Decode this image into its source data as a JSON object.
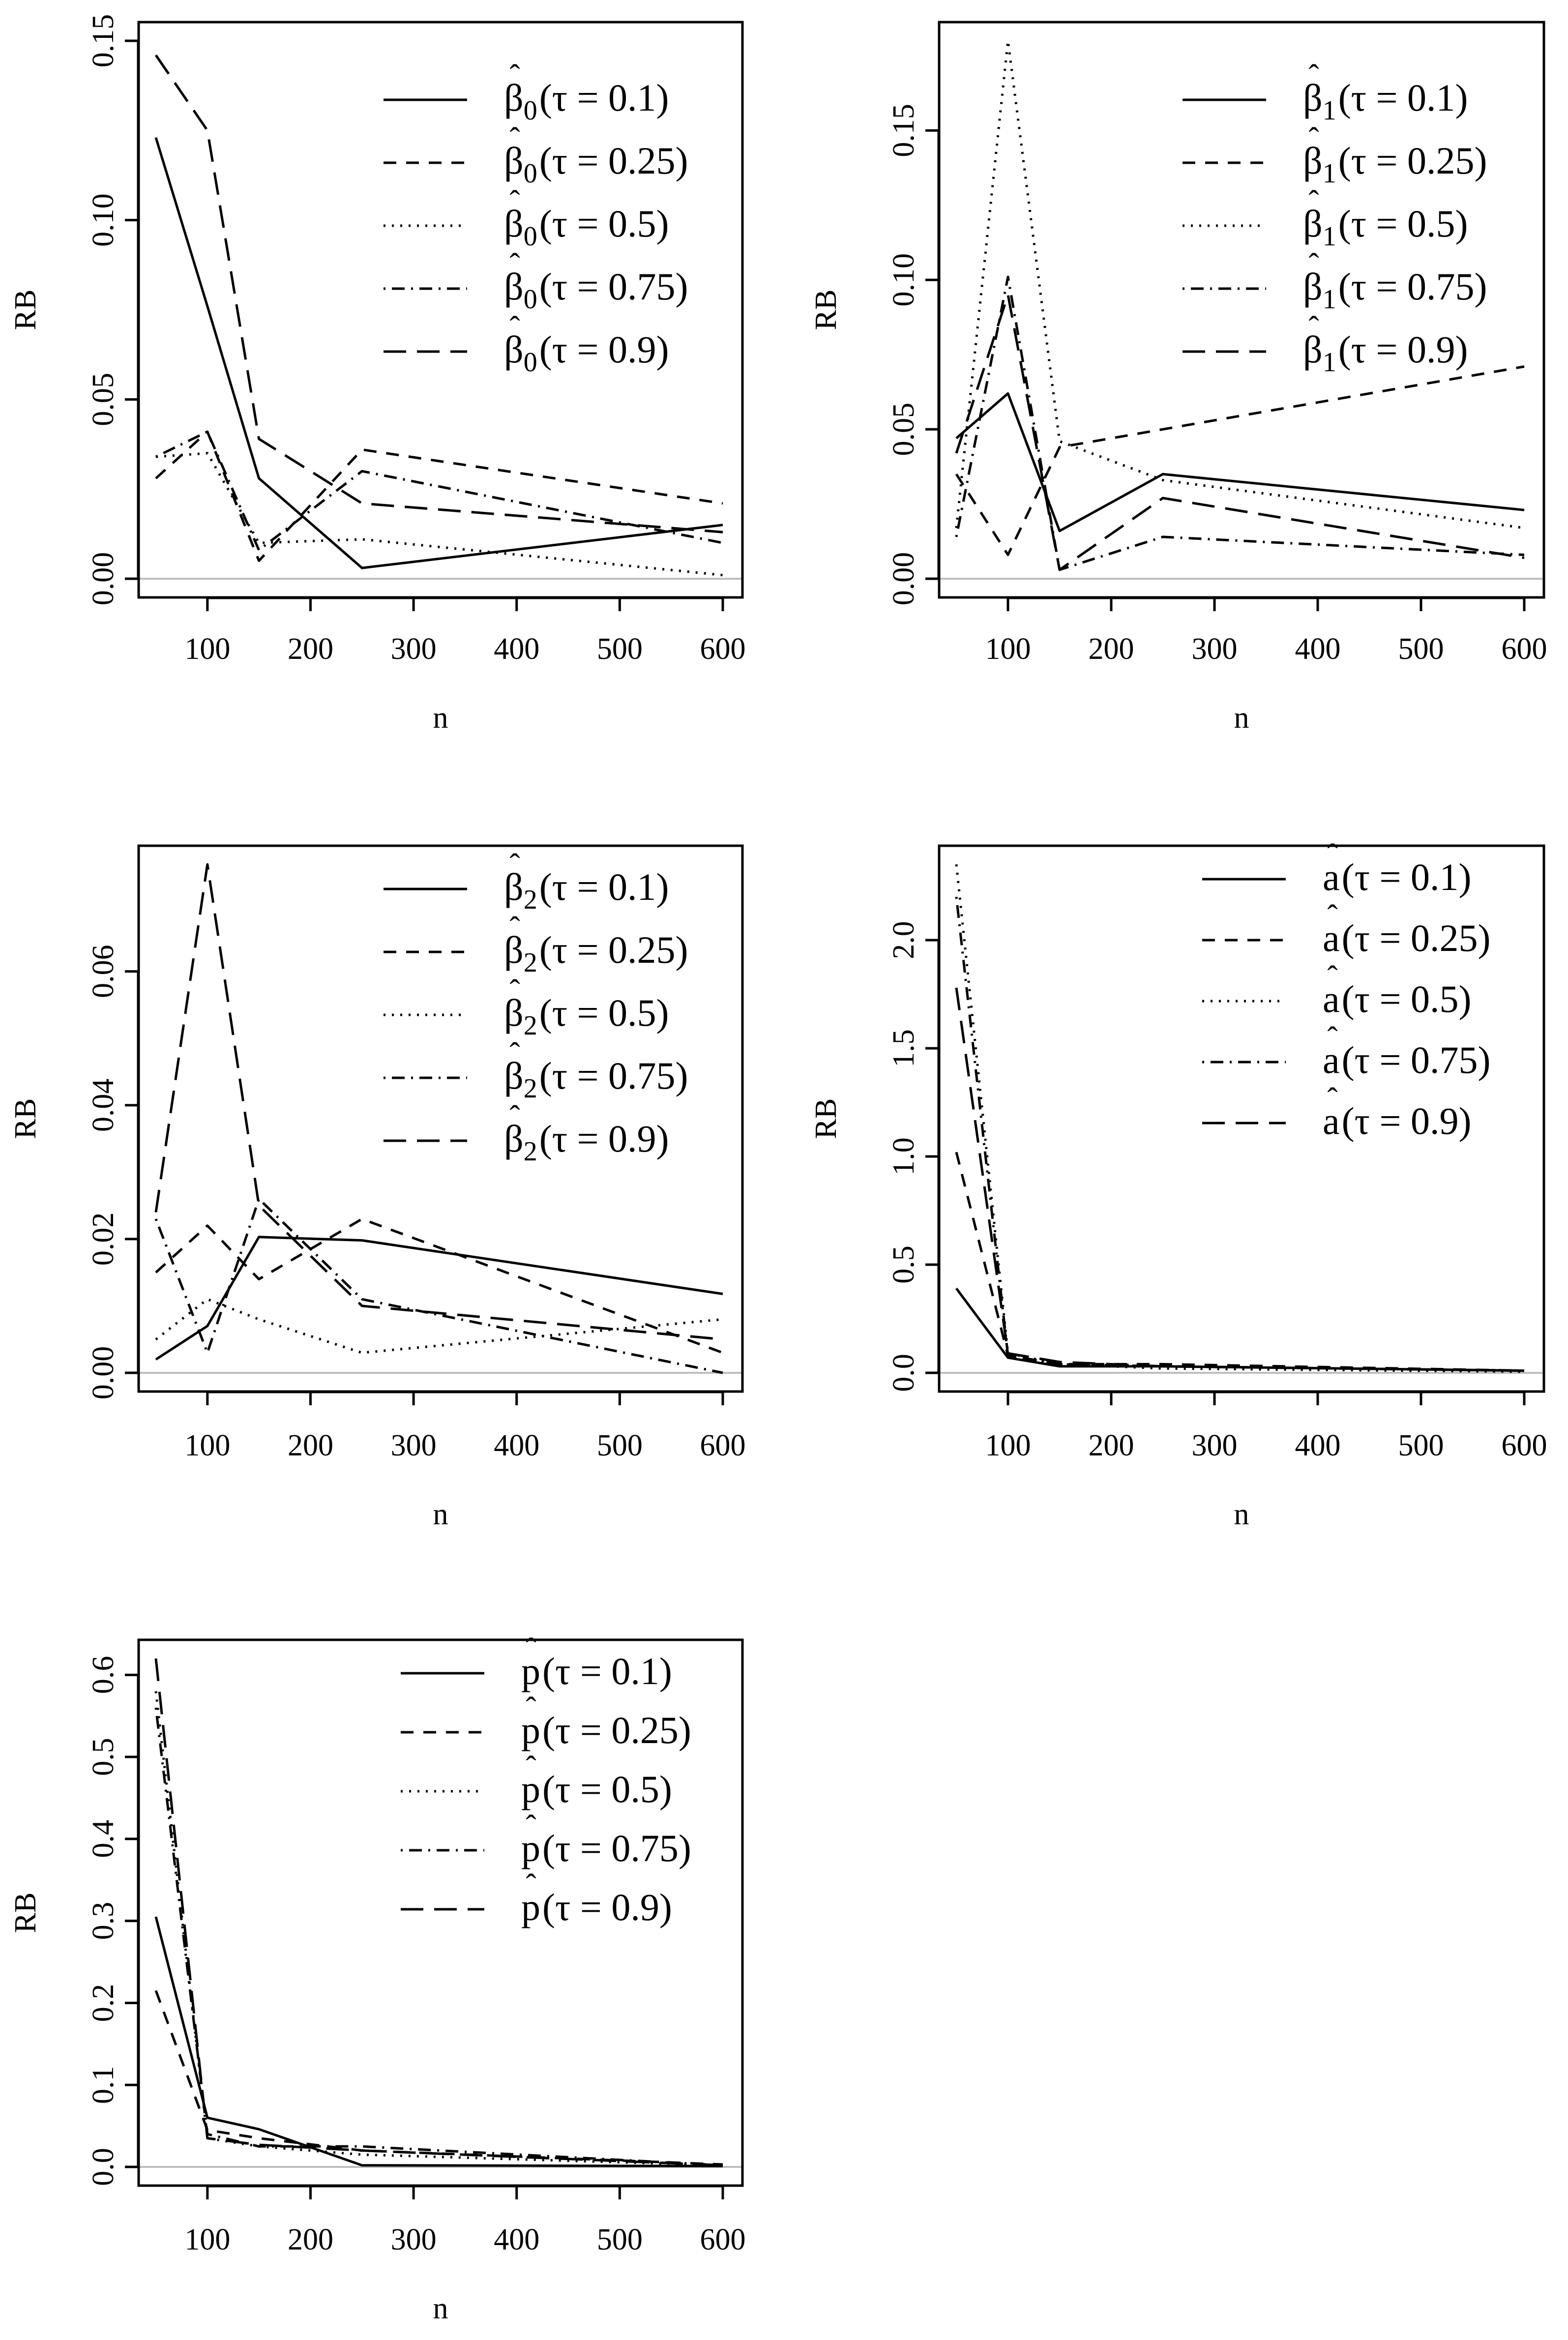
{
  "figure": {
    "background": "#ffffff",
    "line_color": "#000000",
    "zero_line_color": "#bebebe"
  },
  "chart_data": [
    {
      "type": "line",
      "title": "",
      "xlabel": "n",
      "ylabel": "RB",
      "xlim": [
        50,
        600
      ],
      "ylim": [
        0,
        0.15
      ],
      "xticks": [
        "100",
        "200",
        "300",
        "400",
        "500",
        "600"
      ],
      "yticks": [
        "0.00",
        "0.05",
        "0.10",
        "0.15"
      ],
      "legend_position": "top-right",
      "x": [
        50,
        100,
        150,
        250,
        600
      ],
      "series": [
        {
          "name": "β̂0(τ = 0.1)",
          "estimator": "β",
          "sub": "0",
          "tau": "0.1",
          "style": "solid",
          "values": [
            0.123,
            0.076,
            0.028,
            0.003,
            0.015
          ]
        },
        {
          "name": "β̂0(τ = 0.25)",
          "estimator": "β",
          "sub": "0",
          "tau": "0.25",
          "style": "dashed",
          "values": [
            0.028,
            0.041,
            0.005,
            0.036,
            0.021
          ]
        },
        {
          "name": "β̂0(τ = 0.5)",
          "estimator": "β",
          "sub": "0",
          "tau": "0.5",
          "style": "dotted",
          "values": [
            0.034,
            0.035,
            0.01,
            0.011,
            0.001
          ]
        },
        {
          "name": "β̂0(τ = 0.75)",
          "estimator": "β",
          "sub": "0",
          "tau": "0.75",
          "style": "dotdash",
          "values": [
            0.034,
            0.041,
            0.008,
            0.03,
            0.01
          ]
        },
        {
          "name": "β̂0(τ = 0.9)",
          "estimator": "β",
          "sub": "0",
          "tau": "0.9",
          "style": "longdash",
          "values": [
            0.146,
            0.125,
            0.039,
            0.021,
            0.013
          ]
        }
      ]
    },
    {
      "type": "line",
      "title": "",
      "xlabel": "n",
      "ylabel": "RB",
      "xlim": [
        50,
        600
      ],
      "ylim": [
        0,
        0.18
      ],
      "xticks": [
        "100",
        "200",
        "300",
        "400",
        "500",
        "600"
      ],
      "yticks": [
        "0.00",
        "0.05",
        "0.10",
        "0.15"
      ],
      "legend_position": "top-right",
      "x": [
        50,
        100,
        150,
        250,
        600
      ],
      "series": [
        {
          "name": "β̂1(τ = 0.1)",
          "estimator": "β",
          "sub": "1",
          "tau": "0.1",
          "style": "solid",
          "values": [
            0.047,
            0.062,
            0.016,
            0.035,
            0.023
          ]
        },
        {
          "name": "β̂1(τ = 0.25)",
          "estimator": "β",
          "sub": "1",
          "tau": "0.25",
          "style": "dashed",
          "values": [
            0.035,
            0.008,
            0.044,
            0.05,
            0.071
          ]
        },
        {
          "name": "β̂1(τ = 0.5)",
          "estimator": "β",
          "sub": "1",
          "tau": "0.5",
          "style": "dotted",
          "values": [
            0.017,
            0.18,
            0.046,
            0.033,
            0.017
          ]
        },
        {
          "name": "β̂1(τ = 0.75)",
          "estimator": "β",
          "sub": "1",
          "tau": "0.75",
          "style": "dotdash",
          "values": [
            0.014,
            0.101,
            0.003,
            0.014,
            0.008
          ]
        },
        {
          "name": "β̂1(τ = 0.9)",
          "estimator": "β",
          "sub": "1",
          "tau": "0.9",
          "style": "longdash",
          "values": [
            0.042,
            0.095,
            0.003,
            0.027,
            0.007
          ]
        }
      ]
    },
    {
      "type": "line",
      "title": "",
      "xlabel": "n",
      "ylabel": "RB",
      "xlim": [
        50,
        600
      ],
      "ylim": [
        0,
        0.076
      ],
      "xticks": [
        "100",
        "200",
        "300",
        "400",
        "500",
        "600"
      ],
      "yticks": [
        "0.00",
        "0.02",
        "0.04",
        "0.06"
      ],
      "legend_position": "top-right",
      "x": [
        50,
        100,
        150,
        250,
        600
      ],
      "series": [
        {
          "name": "β̂2(τ = 0.1)",
          "estimator": "β",
          "sub": "2",
          "tau": "0.1",
          "style": "solid",
          "values": [
            0.002,
            0.007,
            0.0203,
            0.0198,
            0.0118
          ]
        },
        {
          "name": "β̂2(τ = 0.25)",
          "estimator": "β",
          "sub": "2",
          "tau": "0.25",
          "style": "dashed",
          "values": [
            0.015,
            0.022,
            0.014,
            0.023,
            0.003
          ]
        },
        {
          "name": "β̂2(τ = 0.5)",
          "estimator": "β",
          "sub": "2",
          "tau": "0.5",
          "style": "dotted",
          "values": [
            0.005,
            0.011,
            0.008,
            0.003,
            0.008
          ]
        },
        {
          "name": "β̂2(τ = 0.75)",
          "estimator": "β",
          "sub": "2",
          "tau": "0.75",
          "style": "dotdash",
          "values": [
            0.023,
            0.003,
            0.026,
            0.011,
            0.0
          ]
        },
        {
          "name": "β̂2(τ = 0.9)",
          "estimator": "β",
          "sub": "2",
          "tau": "0.9",
          "style": "longdash",
          "values": [
            0.024,
            0.076,
            0.025,
            0.01,
            0.005
          ]
        }
      ]
    },
    {
      "type": "line",
      "title": "",
      "xlabel": "n",
      "ylabel": "RB",
      "xlim": [
        50,
        600
      ],
      "ylim": [
        0,
        2.35
      ],
      "xticks": [
        "100",
        "200",
        "300",
        "400",
        "500",
        "600"
      ],
      "yticks": [
        "0.0",
        "0.5",
        "1.0",
        "1.5",
        "2.0"
      ],
      "legend_position": "top-right",
      "x": [
        50,
        100,
        150,
        250,
        600
      ],
      "series": [
        {
          "name": "â(τ = 0.1)",
          "estimator": "a",
          "sub": "",
          "tau": "0.1",
          "style": "solid",
          "values": [
            0.39,
            0.07,
            0.03,
            0.03,
            0.01
          ]
        },
        {
          "name": "â(τ = 0.25)",
          "estimator": "a",
          "sub": "",
          "tau": "0.25",
          "style": "dashed",
          "values": [
            1.02,
            0.08,
            0.04,
            0.04,
            0.01
          ]
        },
        {
          "name": "â(τ = 0.5)",
          "estimator": "a",
          "sub": "",
          "tau": "0.5",
          "style": "dotted",
          "values": [
            2.35,
            0.09,
            0.04,
            0.02,
            0.005
          ]
        },
        {
          "name": "â(τ = 0.75)",
          "estimator": "a",
          "sub": "",
          "tau": "0.75",
          "style": "dotdash",
          "values": [
            2.2,
            0.08,
            0.04,
            0.03,
            0.01
          ]
        },
        {
          "name": "â(τ = 0.9)",
          "estimator": "a",
          "sub": "",
          "tau": "0.9",
          "style": "longdash",
          "values": [
            1.78,
            0.09,
            0.05,
            0.03,
            0.01
          ]
        }
      ]
    },
    {
      "type": "line",
      "title": "",
      "xlabel": "n",
      "ylabel": "RB",
      "xlim": [
        50,
        600
      ],
      "ylim": [
        0,
        0.62
      ],
      "xticks": [
        "100",
        "200",
        "300",
        "400",
        "500",
        "600"
      ],
      "yticks": [
        "0.0",
        "0.1",
        "0.2",
        "0.3",
        "0.4",
        "0.5",
        "0.6"
      ],
      "legend_position": "top-right",
      "x": [
        50,
        100,
        150,
        250,
        600
      ],
      "series": [
        {
          "name": "p̂(τ = 0.1)",
          "estimator": "p",
          "sub": "",
          "tau": "0.1",
          "style": "solid",
          "values": [
            0.305,
            0.06,
            0.046,
            0.002,
            0.001
          ]
        },
        {
          "name": "p̂(τ = 0.25)",
          "estimator": "p",
          "sub": "",
          "tau": "0.25",
          "style": "dashed",
          "values": [
            0.215,
            0.045,
            0.035,
            0.02,
            0.003
          ]
        },
        {
          "name": "p̂(τ = 0.5)",
          "estimator": "p",
          "sub": "",
          "tau": "0.5",
          "style": "dotted",
          "values": [
            0.58,
            0.035,
            0.025,
            0.015,
            0.002
          ]
        },
        {
          "name": "p̂(τ = 0.75)",
          "estimator": "p",
          "sub": "",
          "tau": "0.75",
          "style": "dotdash",
          "values": [
            0.56,
            0.04,
            0.025,
            0.025,
            0.002
          ]
        },
        {
          "name": "p̂(τ = 0.9)",
          "estimator": "p",
          "sub": "",
          "tau": "0.9",
          "style": "longdash",
          "values": [
            0.62,
            0.035,
            0.027,
            0.02,
            0.002
          ]
        }
      ]
    }
  ]
}
